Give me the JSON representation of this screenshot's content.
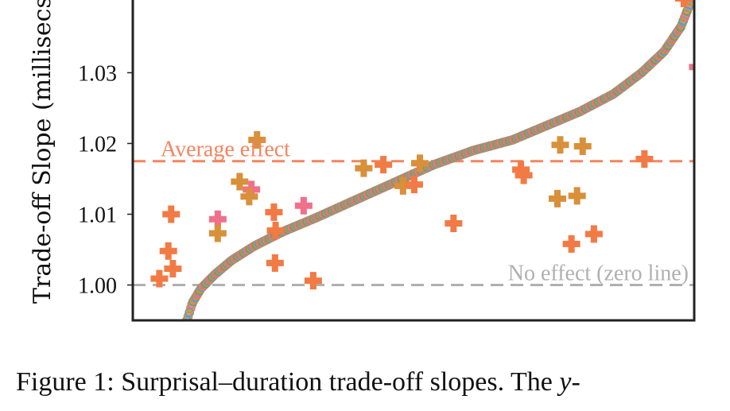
{
  "caption": {
    "text": "Figure 1: Surprisal–duration trade-off slopes.  The ",
    "italic": "y",
    "suffix": "-"
  },
  "chart_data": {
    "type": "scatter",
    "ylabel": "Trade-off Slope (millisecs",
    "ylim": [
      0.995,
      1.0405
    ],
    "yticks": [
      {
        "value": 1.0,
        "label": "1.00"
      },
      {
        "value": 1.01,
        "label": "1.01"
      },
      {
        "value": 1.02,
        "label": "1.02"
      },
      {
        "value": 1.03,
        "label": "1.03"
      }
    ],
    "reference_lines": [
      {
        "label": "Average effect",
        "value": 1.0175,
        "color": "#f4845f",
        "style": "dashed"
      },
      {
        "label": "No effect (zero line)",
        "value": 1.0,
        "color": "#b0b0b0",
        "style": "dashed"
      }
    ],
    "curve": {
      "description_colors": [
        "#e0873a",
        "#58a86b",
        "#5b9bd5",
        "#e86f8f",
        "#d98b3a"
      ],
      "points": [
        [
          0.0,
          0.995
        ],
        [
          0.01,
          0.9975
        ],
        [
          0.025,
          0.9995
        ],
        [
          0.05,
          1.0015
        ],
        [
          0.08,
          1.0035
        ],
        [
          0.12,
          1.0055
        ],
        [
          0.17,
          1.0075
        ],
        [
          0.23,
          1.0095
        ],
        [
          0.3,
          1.012
        ],
        [
          0.37,
          1.0145
        ],
        [
          0.44,
          1.017
        ],
        [
          0.51,
          1.019
        ],
        [
          0.58,
          1.0205
        ],
        [
          0.64,
          1.0225
        ],
        [
          0.7,
          1.0245
        ],
        [
          0.76,
          1.027
        ],
        [
          0.81,
          1.03
        ],
        [
          0.85,
          1.033
        ],
        [
          0.88,
          1.0365
        ],
        [
          0.9,
          1.0405
        ]
      ]
    },
    "markers": [
      {
        "x": 0.057,
        "y": 1.01,
        "color": "#f27a45"
      },
      {
        "x": 0.052,
        "y": 1.0048,
        "color": "#f27a45"
      },
      {
        "x": 0.06,
        "y": 1.0023,
        "color": "#f27a45"
      },
      {
        "x": 0.036,
        "y": 1.0009,
        "color": "#f27a45"
      },
      {
        "x": 0.14,
        "y": 1.0093,
        "color": "#f0708a"
      },
      {
        "x": 0.14,
        "y": 1.0073,
        "color": "#d9903a"
      },
      {
        "x": 0.21,
        "y": 1.0205,
        "color": "#d9903a"
      },
      {
        "x": 0.2,
        "y": 1.0135,
        "color": "#f0708a"
      },
      {
        "x": 0.179,
        "y": 1.0146,
        "color": "#d9903a"
      },
      {
        "x": 0.196,
        "y": 1.0125,
        "color": "#d9903a"
      },
      {
        "x": 0.24,
        "y": 1.0103,
        "color": "#f27a45"
      },
      {
        "x": 0.243,
        "y": 1.0077,
        "color": "#f27a45"
      },
      {
        "x": 0.242,
        "y": 1.0031,
        "color": "#f27a45"
      },
      {
        "x": 0.293,
        "y": 1.0112,
        "color": "#f0708a"
      },
      {
        "x": 0.31,
        "y": 1.0006,
        "color": "#f27a45"
      },
      {
        "x": 0.4,
        "y": 1.0165,
        "color": "#d9903a"
      },
      {
        "x": 0.435,
        "y": 1.017,
        "color": "#f27a45"
      },
      {
        "x": 0.47,
        "y": 1.014,
        "color": "#d9903a"
      },
      {
        "x": 0.49,
        "y": 1.0142,
        "color": "#f27a45"
      },
      {
        "x": 0.5,
        "y": 1.0172,
        "color": "#d9903a"
      },
      {
        "x": 0.56,
        "y": 1.0087,
        "color": "#f27a45"
      },
      {
        "x": 0.68,
        "y": 1.0163,
        "color": "#f27a45"
      },
      {
        "x": 0.685,
        "y": 1.0155,
        "color": "#f27a45"
      },
      {
        "x": 0.75,
        "y": 1.0198,
        "color": "#d9903a"
      },
      {
        "x": 0.79,
        "y": 1.0196,
        "color": "#d9903a"
      },
      {
        "x": 0.745,
        "y": 1.0122,
        "color": "#d9903a"
      },
      {
        "x": 0.78,
        "y": 1.0126,
        "color": "#d9903a"
      },
      {
        "x": 0.77,
        "y": 1.0058,
        "color": "#f27a45"
      },
      {
        "x": 0.81,
        "y": 1.0072,
        "color": "#f27a45"
      },
      {
        "x": 0.9,
        "y": 1.0178,
        "color": "#f27a45"
      },
      {
        "x": 0.97,
        "y": 1.0405,
        "color": "#f27a45"
      },
      {
        "x": 0.995,
        "y": 1.0308,
        "color": "#f0708a"
      }
    ]
  }
}
